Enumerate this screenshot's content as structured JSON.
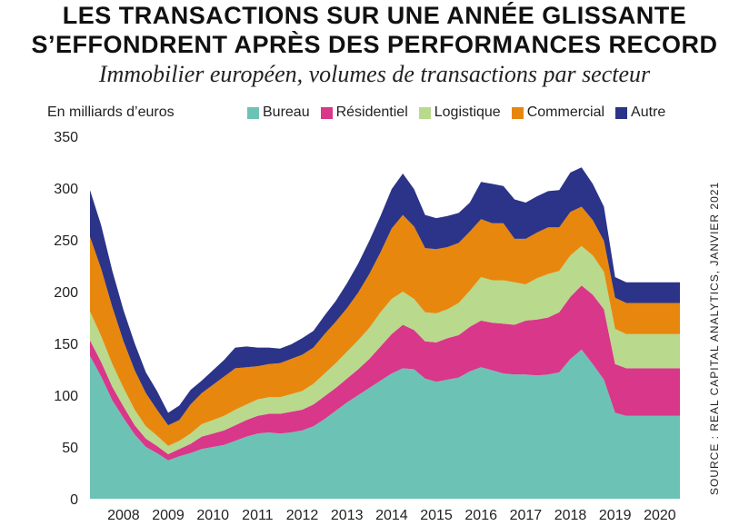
{
  "header": {
    "title_line1": "LES TRANSACTIONS SUR UNE ANNÉE GLISSANTE",
    "title_line2": "S’EFFONDRENT APRÈS DES PERFORMANCES RECORD",
    "subtitle": "Immobilier européen, volumes de transactions par secteur"
  },
  "source": "SOURCE : REAL CAPITAL ANALYTICS, JANVIER 2021",
  "chart_data": {
    "type": "area",
    "stacked": true,
    "title": "LES TRANSACTIONS SUR UNE ANNÉE GLISSANTE S’EFFONDRENT APRÈS DES PERFORMANCES RECORD",
    "subtitle": "Immobilier européen, volumes de transactions par secteur",
    "ylabel": "En milliards d’euros",
    "ylim": [
      0,
      350
    ],
    "yticks": [
      0,
      50,
      100,
      150,
      200,
      250,
      300,
      350
    ],
    "xlim": [
      2007.75,
      2020.95
    ],
    "xticks": [
      2008,
      2009,
      2010,
      2011,
      2012,
      2013,
      2014,
      2015,
      2016,
      2017,
      2018,
      2019,
      2020
    ],
    "grid": false,
    "legend_position": "top",
    "x": [
      2007.75,
      2008.0,
      2008.25,
      2008.5,
      2008.75,
      2009.0,
      2009.25,
      2009.5,
      2009.75,
      2010.0,
      2010.25,
      2010.5,
      2010.75,
      2011.0,
      2011.25,
      2011.5,
      2011.75,
      2012.0,
      2012.25,
      2012.5,
      2012.75,
      2013.0,
      2013.25,
      2013.5,
      2013.75,
      2014.0,
      2014.25,
      2014.5,
      2014.75,
      2015.0,
      2015.25,
      2015.5,
      2015.75,
      2016.0,
      2016.25,
      2016.5,
      2016.75,
      2017.0,
      2017.25,
      2017.5,
      2017.75,
      2018.0,
      2018.25,
      2018.5,
      2018.75,
      2019.0,
      2019.25,
      2019.5,
      2019.75,
      2020.0,
      2020.25,
      2020.5,
      2020.75,
      2020.95
    ],
    "series": [
      {
        "name": "Bureau",
        "color": "#6cc3b5",
        "values": [
          138,
          118,
          95,
          78,
          62,
          50,
          44,
          37,
          41,
          44,
          48,
          50,
          52,
          56,
          60,
          63,
          64,
          63,
          64,
          66,
          70,
          77,
          85,
          93,
          100,
          107,
          114,
          121,
          126,
          125,
          116,
          113,
          115,
          117,
          123,
          127,
          124,
          121,
          120,
          120,
          119,
          120,
          122,
          135,
          144,
          130,
          115,
          83,
          80,
          80,
          80,
          80,
          80,
          80
        ]
      },
      {
        "name": "Résidentiel",
        "color": "#d9378a",
        "values": [
          15,
          14,
          13,
          11,
          9,
          8,
          7,
          6,
          7,
          9,
          12,
          13,
          14,
          15,
          16,
          17,
          18,
          19,
          20,
          20,
          21,
          22,
          22,
          23,
          25,
          28,
          33,
          38,
          42,
          38,
          36,
          38,
          40,
          41,
          43,
          45,
          46,
          48,
          48,
          52,
          54,
          55,
          58,
          60,
          62,
          67,
          68,
          47,
          46,
          46,
          46,
          46,
          46,
          46
        ]
      },
      {
        "name": "Logistique",
        "color": "#b9d98c",
        "values": [
          28,
          25,
          22,
          18,
          15,
          12,
          10,
          8,
          8,
          10,
          12,
          13,
          14,
          15,
          15,
          16,
          16,
          16,
          17,
          18,
          20,
          22,
          24,
          26,
          28,
          30,
          33,
          34,
          32,
          30,
          28,
          28,
          28,
          31,
          35,
          42,
          41,
          42,
          41,
          35,
          40,
          42,
          40,
          40,
          38,
          38,
          36,
          34,
          33,
          33,
          33,
          33,
          33,
          33
        ]
      },
      {
        "name": "Commercial",
        "color": "#e8870e",
        "values": [
          72,
          65,
          55,
          45,
          38,
          32,
          25,
          20,
          20,
          28,
          30,
          34,
          38,
          40,
          36,
          32,
          32,
          33,
          34,
          35,
          35,
          38,
          40,
          42,
          46,
          52,
          58,
          68,
          74,
          70,
          62,
          62,
          60,
          58,
          57,
          56,
          55,
          55,
          42,
          44,
          44,
          45,
          42,
          42,
          38,
          34,
          30,
          30,
          30,
          30,
          30,
          30,
          30,
          30
        ]
      },
      {
        "name": "Autre",
        "color": "#2b3489",
        "values": [
          45,
          42,
          35,
          30,
          26,
          20,
          18,
          12,
          14,
          14,
          12,
          14,
          16,
          20,
          20,
          18,
          16,
          14,
          14,
          16,
          16,
          18,
          20,
          24,
          28,
          32,
          35,
          38,
          40,
          36,
          32,
          30,
          30,
          29,
          28,
          36,
          38,
          36,
          38,
          35,
          35,
          35,
          36,
          38,
          38,
          35,
          33,
          20,
          20,
          20,
          20,
          20,
          20,
          20
        ]
      }
    ]
  }
}
